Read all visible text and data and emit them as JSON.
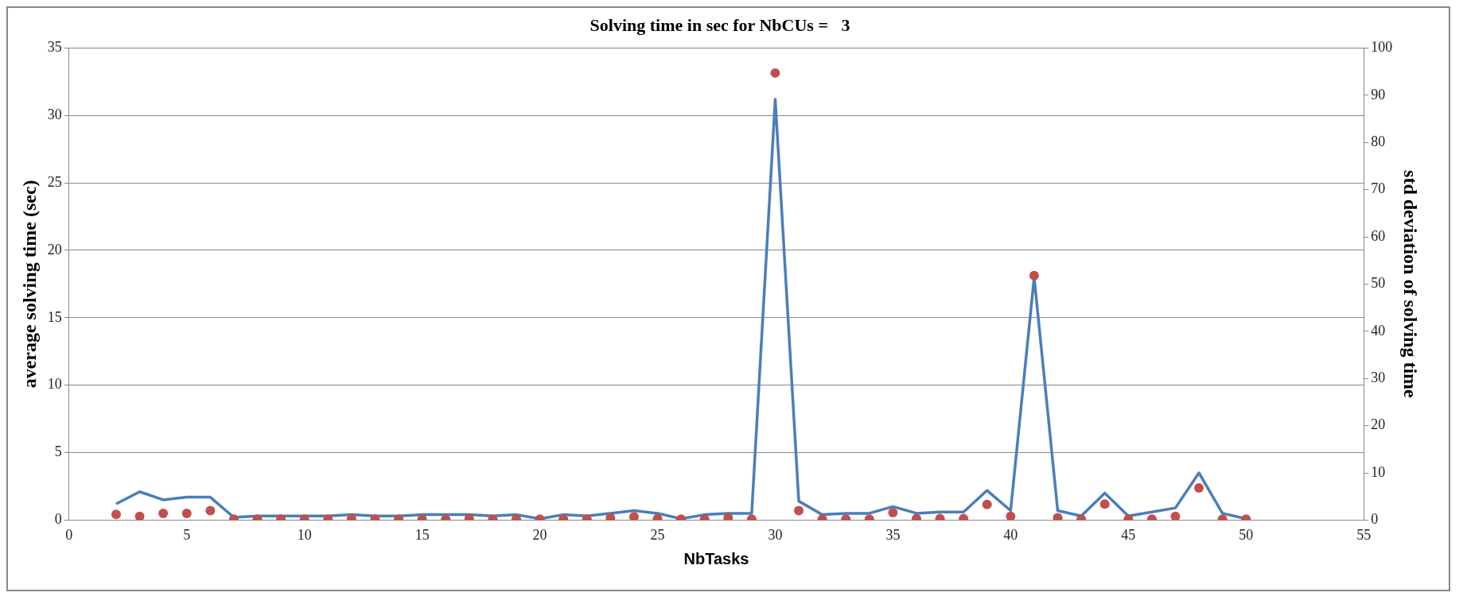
{
  "chart_data": {
    "type": "line",
    "title": "Solving time in sec for NbCUs =   3",
    "xlabel": "NbTasks",
    "ylabel": "average solving time (sec)",
    "y2label": "std deviation of solving time",
    "x": [
      2,
      3,
      4,
      5,
      6,
      7,
      8,
      9,
      10,
      11,
      12,
      13,
      14,
      15,
      16,
      17,
      18,
      19,
      20,
      21,
      22,
      23,
      24,
      25,
      26,
      27,
      28,
      29,
      30,
      31,
      32,
      33,
      34,
      35,
      36,
      37,
      38,
      39,
      40,
      41,
      42,
      43,
      44,
      45,
      46,
      47,
      48,
      49,
      50
    ],
    "series": [
      {
        "color": "#4a7ebb",
        "marker": "none",
        "values": [
          1.2,
          2.1,
          1.5,
          1.7,
          1.7,
          0.2,
          0.3,
          0.3,
          0.3,
          0.3,
          0.4,
          0.3,
          0.3,
          0.4,
          0.4,
          0.4,
          0.3,
          0.4,
          0.1,
          0.4,
          0.3,
          0.5,
          0.7,
          0.5,
          0.1,
          0.4,
          0.5,
          0.5,
          31.2,
          1.4,
          0.4,
          0.5,
          0.5,
          1.0,
          0.5,
          0.6,
          0.6,
          2.2,
          0.7,
          18.0,
          0.7,
          0.3,
          2.0,
          0.3,
          0.6,
          0.9,
          3.5,
          0.5,
          0.1
        ]
      },
      {
        "type": "scatter",
        "axis": "y2",
        "color": "#c0504d",
        "marker": "circle",
        "values": [
          1.2,
          0.8,
          1.4,
          1.4,
          2.0,
          0.2,
          0.2,
          0.2,
          0.2,
          0.2,
          0.3,
          0.2,
          0.2,
          0.2,
          0.2,
          0.3,
          0.2,
          0.2,
          0.2,
          0.2,
          0.2,
          0.5,
          0.7,
          0.3,
          0.2,
          0.2,
          0.5,
          0.2,
          94.7,
          2.0,
          0.2,
          0.2,
          0.2,
          1.6,
          0.3,
          0.3,
          0.3,
          3.3,
          0.8,
          51.8,
          0.5,
          0.2,
          3.4,
          0.2,
          0.2,
          0.8,
          6.8,
          0.2,
          0.2
        ]
      }
    ],
    "xlim": [
      0,
      55
    ],
    "xticks": [
      0,
      5,
      10,
      15,
      20,
      25,
      30,
      35,
      40,
      45,
      50,
      55
    ],
    "ylim": [
      0,
      35
    ],
    "yticks": [
      0,
      5,
      10,
      15,
      20,
      25,
      30,
      35
    ],
    "y2lim": [
      0,
      100
    ],
    "y2ticks": [
      0,
      10,
      20,
      30,
      40,
      50,
      60,
      70,
      80,
      90,
      100
    ],
    "grid": "y",
    "legend": false
  }
}
